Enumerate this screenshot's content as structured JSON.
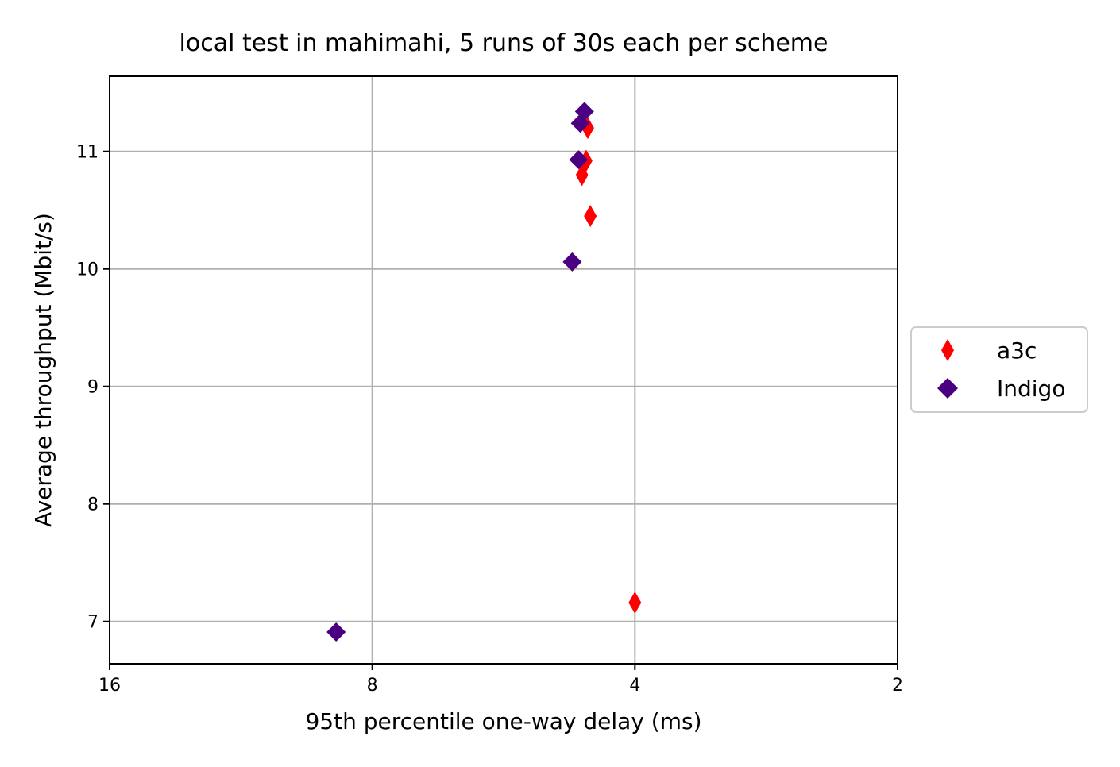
{
  "chart_data": {
    "type": "scatter",
    "title": "local test in mahimahi, 5 runs of 30s each per scheme",
    "xlabel": "95th percentile one-way delay (ms)",
    "ylabel": "Average throughput (Mbit/s)",
    "x_scale": "log2",
    "x_inverted": true,
    "xlim": [
      16,
      2
    ],
    "ylim": [
      6.64,
      11.64
    ],
    "x_ticks": [
      16,
      8,
      4,
      2
    ],
    "x_tick_labels": [
      "16",
      "8",
      "4",
      "2"
    ],
    "y_ticks": [
      7,
      8,
      9,
      10,
      11
    ],
    "y_tick_labels": [
      "7",
      "8",
      "9",
      "10",
      "11"
    ],
    "grid": true,
    "legend_position": "outside-right",
    "series": [
      {
        "name": "a3c",
        "marker": "thin-diamond",
        "color": "#ff0000",
        "points": [
          {
            "x": 4.53,
            "y": 11.2
          },
          {
            "x": 4.55,
            "y": 10.92
          },
          {
            "x": 4.6,
            "y": 10.8
          },
          {
            "x": 4.5,
            "y": 10.45
          },
          {
            "x": 4.0,
            "y": 7.16
          }
        ]
      },
      {
        "name": "Indigo",
        "marker": "diamond",
        "color": "#4b0082",
        "points": [
          {
            "x": 4.57,
            "y": 11.34
          },
          {
            "x": 4.62,
            "y": 11.24
          },
          {
            "x": 4.64,
            "y": 10.93
          },
          {
            "x": 4.72,
            "y": 10.06
          },
          {
            "x": 8.8,
            "y": 6.91
          }
        ]
      }
    ]
  }
}
